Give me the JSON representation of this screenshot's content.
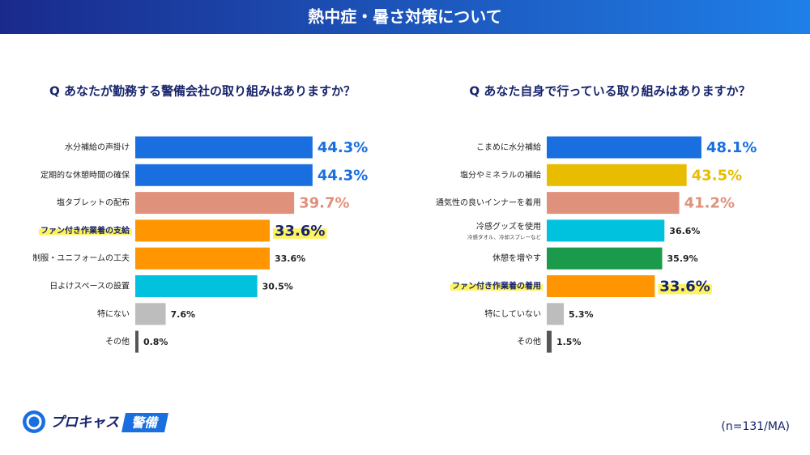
{
  "title": "熱中症・暑さ対策について",
  "chart_data": [
    {
      "type": "barh",
      "title": "Q あなたが勤務する警備会社の取り組みはありますか？",
      "categories": [
        "水分補給の声掛け",
        "定期的な休憩時間の確保",
        "塩タブレットの配布",
        "ファン付き作業着の支給",
        "制服・ユニフォームの工夫",
        "日よけスペースの設置",
        "特にない",
        "その他"
      ],
      "values": [
        44.3,
        44.3,
        39.7,
        33.6,
        33.6,
        30.5,
        7.6,
        0.8
      ],
      "value_labels": [
        "44.3%",
        "44.3%",
        "39.7%",
        "33.6%",
        "33.6%",
        "30.5%",
        "7.6%",
        "0.8%"
      ],
      "colors": [
        "#1a6fe0",
        "#1a6fe0",
        "#e0917b",
        "#ff9500",
        "#ff9500",
        "#00c2de",
        "#bdbdbd",
        "#555555"
      ],
      "label_colors": [
        "#1a6fe0",
        "#1a6fe0",
        "#e0917b",
        "#17246b",
        "#222222",
        "#222222",
        "#222222",
        "#222222"
      ],
      "highlight_index": 3
    },
    {
      "type": "barh",
      "title": "Q あなた自身で行っている取り組みはありますか？",
      "categories": [
        "こまめに水分補給",
        "塩分やミネラルの補給",
        "通気性の良いインナーを着用",
        "冷感グッズを使用",
        "休憩を増やす",
        "ファン付き作業着の着用",
        "特にしていない",
        "その他"
      ],
      "category_notes": [
        null,
        null,
        null,
        "冷感タオル、冷却スプレーなど",
        null,
        null,
        null,
        null
      ],
      "values": [
        48.1,
        43.5,
        41.2,
        36.6,
        35.9,
        33.6,
        5.3,
        1.5
      ],
      "value_labels": [
        "48.1%",
        "43.5%",
        "41.2%",
        "36.6%",
        "35.9%",
        "33.6%",
        "5.3%",
        "1.5%"
      ],
      "colors": [
        "#1a6fe0",
        "#e8bd00",
        "#e0917b",
        "#00c2de",
        "#1a9a4a",
        "#ff9500",
        "#bdbdbd",
        "#555555"
      ],
      "label_colors": [
        "#1a6fe0",
        "#e8bd00",
        "#e0917b",
        "#222222",
        "#222222",
        "#17246b",
        "#222222",
        "#222222"
      ],
      "highlight_index": 5
    }
  ],
  "footer": {
    "logo": "プロキャス",
    "logo_badge": "警備",
    "note": "(n=131/MA)"
  }
}
